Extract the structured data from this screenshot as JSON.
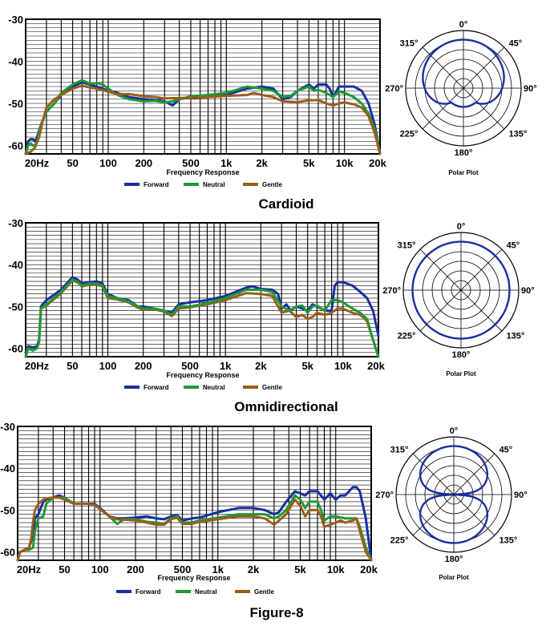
{
  "colors": {
    "forward": "#1a2fa0",
    "neutral": "#1e9a34",
    "gentle": "#9a5e1a",
    "grid": "#000000"
  },
  "chart_data": [
    {
      "type": "line",
      "title": "Cardioid",
      "xlabel": "Frequency Response",
      "ylabel": "",
      "xscale": "log",
      "xlim": [
        20,
        20000
      ],
      "ylim": [
        -62,
        -30
      ],
      "grid": true,
      "legend_position": "bottom",
      "y_ticks": [
        "-30",
        "-40",
        "-50",
        "-60"
      ],
      "y_tick_values": [
        -30,
        -40,
        -50,
        -60
      ],
      "x_ticks": [
        "20Hz",
        "50",
        "100",
        "200",
        "500",
        "1k",
        "2k",
        "5k",
        "10k",
        "20k"
      ],
      "x_tick_values": [
        20,
        50,
        100,
        200,
        500,
        1000,
        2000,
        5000,
        10000,
        20000
      ],
      "series": [
        {
          "name": "Forward",
          "x": [
            20,
            21,
            22,
            23,
            24,
            25,
            27,
            30,
            35,
            40,
            50,
            60,
            70,
            80,
            90,
            100,
            120,
            150,
            200,
            250,
            300,
            350,
            400,
            500,
            700,
            1000,
            1500,
            2000,
            2500,
            3000,
            3500,
            4000,
            5000,
            5500,
            6000,
            7000,
            7500,
            8000,
            9000,
            10000,
            12000,
            14000,
            16000,
            18000,
            20000
          ],
          "y": [
            -62,
            -59,
            -58.5,
            -58.5,
            -59,
            -58,
            -55,
            -52,
            -50,
            -48,
            -46,
            -45,
            -45.5,
            -46,
            -46.5,
            -47,
            -47.5,
            -48.5,
            -49,
            -49.2,
            -49.5,
            -50.5,
            -49,
            -48.5,
            -48.5,
            -48,
            -46.5,
            -46,
            -46.5,
            -49,
            -48.5,
            -47,
            -45.5,
            -46.5,
            -45.5,
            -45.5,
            -46.5,
            -48.5,
            -46,
            -46,
            -46,
            -47,
            -50,
            -55,
            -62
          ]
        },
        {
          "name": "Neutral",
          "x": [
            20,
            21,
            22,
            23,
            24,
            25,
            27,
            30,
            35,
            40,
            50,
            60,
            70,
            80,
            90,
            100,
            120,
            150,
            200,
            250,
            300,
            350,
            400,
            500,
            700,
            1000,
            1500,
            2000,
            2500,
            3000,
            3500,
            4000,
            5000,
            5500,
            6000,
            7000,
            8000,
            9000,
            10000,
            12000,
            14000,
            16000,
            18000,
            20000
          ],
          "y": [
            -62,
            -60,
            -59.5,
            -60,
            -60,
            -59,
            -55,
            -52,
            -50,
            -47.5,
            -45.5,
            -44.5,
            -45.3,
            -45.2,
            -45.5,
            -46.5,
            -48,
            -49,
            -49.5,
            -49.4,
            -49.8,
            -49.5,
            -49,
            -48.3,
            -48,
            -47.5,
            -46,
            -46.5,
            -47,
            -48.5,
            -48.2,
            -47,
            -46,
            -47,
            -46.8,
            -47.5,
            -48.5,
            -47.2,
            -47.5,
            -48.5,
            -50,
            -52.5,
            -56,
            -62
          ]
        },
        {
          "name": "Gentle",
          "x": [
            20,
            22,
            24,
            26,
            28,
            30,
            35,
            40,
            50,
            60,
            70,
            80,
            100,
            120,
            150,
            200,
            250,
            300,
            400,
            500,
            700,
            1000,
            1500,
            1700,
            2000,
            2500,
            3000,
            4000,
            5000,
            6000,
            7000,
            8000,
            9000,
            10000,
            12000,
            14000,
            16000,
            18000,
            20000
          ],
          "y": [
            -62,
            -61.5,
            -60.5,
            -58,
            -54,
            -51,
            -49,
            -48,
            -46.5,
            -45.8,
            -46.2,
            -46.5,
            -47.2,
            -47.8,
            -47.8,
            -48.3,
            -48.5,
            -48.8,
            -48.7,
            -48.7,
            -48.5,
            -48.2,
            -48,
            -47.5,
            -48,
            -48.5,
            -49.5,
            -49.7,
            -49.3,
            -49.2,
            -50,
            -50.5,
            -50,
            -49.8,
            -50.2,
            -51,
            -53,
            -57,
            -62
          ]
        }
      ]
    },
    {
      "type": "line",
      "title": "Omnidirectional",
      "xlabel": "Frequency Response",
      "ylabel": "",
      "xscale": "log",
      "xlim": [
        20,
        20000
      ],
      "ylim": [
        -62,
        -30
      ],
      "grid": true,
      "legend_position": "bottom",
      "y_ticks": [
        "-30",
        "-40",
        "-50",
        "-60"
      ],
      "y_tick_values": [
        -30,
        -40,
        -50,
        -60
      ],
      "x_ticks": [
        "20Hz",
        "50",
        "100",
        "200",
        "500",
        "1k",
        "2k",
        "5k",
        "10k",
        "20k"
      ],
      "x_tick_values": [
        20,
        50,
        100,
        200,
        500,
        1000,
        2000,
        5000,
        10000,
        20000
      ],
      "series": [
        {
          "name": "Forward",
          "x": [
            20,
            21,
            23,
            25,
            26,
            27,
            30,
            40,
            50,
            55,
            60,
            70,
            80,
            90,
            100,
            120,
            150,
            180,
            200,
            250,
            300,
            350,
            400,
            500,
            700,
            1000,
            1500,
            1700,
            2000,
            2500,
            2800,
            3000,
            3300,
            3600,
            4000,
            4500,
            5000,
            5500,
            6000,
            7000,
            8000,
            8500,
            9000,
            10000,
            12000,
            14000,
            16000,
            18000,
            20000
          ],
          "y": [
            -61,
            -59.5,
            -59.8,
            -59.5,
            -58,
            -50,
            -48.5,
            -46,
            -43,
            -43.5,
            -44.5,
            -44.2,
            -44,
            -44.5,
            -47,
            -48,
            -48.5,
            -50,
            -50,
            -50.5,
            -51,
            -51.5,
            -49.5,
            -49,
            -48.5,
            -47.5,
            -45.5,
            -45.2,
            -45.8,
            -46,
            -47,
            -50.5,
            -49.5,
            -51,
            -50,
            -50.5,
            -51,
            -49.5,
            -50,
            -51,
            -51,
            -45,
            -44.2,
            -44.2,
            -45,
            -46.5,
            -48,
            -51,
            -57
          ]
        },
        {
          "name": "Neutral",
          "x": [
            20,
            21,
            23,
            25,
            26,
            27,
            30,
            40,
            50,
            55,
            60,
            70,
            80,
            90,
            100,
            120,
            150,
            180,
            200,
            250,
            300,
            350,
            400,
            500,
            700,
            1000,
            1500,
            2000,
            2500,
            3000,
            3500,
            4000,
            4500,
            5000,
            5500,
            6000,
            7000,
            8000,
            9000,
            10000,
            12000,
            14000,
            16000,
            18000,
            20000
          ],
          "y": [
            -62,
            -60,
            -60.5,
            -60,
            -58.5,
            -50.5,
            -49.5,
            -46.5,
            -43.5,
            -44,
            -45,
            -44.5,
            -44.5,
            -45,
            -47.5,
            -48,
            -48.8,
            -50,
            -50.5,
            -50.5,
            -51,
            -52,
            -50,
            -50,
            -49.2,
            -48,
            -46,
            -46,
            -46.5,
            -50,
            -51,
            -50,
            -49.8,
            -51.5,
            -50,
            -49.8,
            -51,
            -48.5,
            -48.5,
            -49,
            -50.5,
            -51.5,
            -53,
            -58,
            -62
          ]
        },
        {
          "name": "Gentle",
          "x": [
            20,
            21,
            23,
            25,
            26,
            27,
            30,
            40,
            50,
            55,
            60,
            70,
            80,
            90,
            100,
            120,
            150,
            180,
            200,
            250,
            300,
            350,
            400,
            500,
            700,
            1000,
            1500,
            2000,
            2500,
            3000,
            3500,
            4000,
            4500,
            5000,
            5500,
            6000,
            7000,
            8000,
            9000,
            10000,
            12000,
            14000,
            16000,
            18000,
            20000
          ],
          "y": [
            -62,
            -60,
            -60.5,
            -60,
            -58.5,
            -50.5,
            -49.8,
            -46.8,
            -43.8,
            -44.2,
            -45.2,
            -44.8,
            -44.8,
            -45.2,
            -48,
            -48.3,
            -49,
            -50.3,
            -50.8,
            -50.7,
            -51.2,
            -52.3,
            -50.5,
            -50.2,
            -49.5,
            -48.5,
            -46.8,
            -47,
            -47.5,
            -51.5,
            -51,
            -52.5,
            -52,
            -53,
            -52.5,
            -51.5,
            -52,
            -51.5,
            -50.5,
            -50.5,
            -51.5,
            -52,
            -53.5,
            -58,
            -62
          ]
        }
      ]
    },
    {
      "type": "line",
      "title": "Figure-8",
      "xlabel": "Frequency Response",
      "ylabel": "",
      "xscale": "log",
      "xlim": [
        20,
        20000
      ],
      "ylim": [
        -62,
        -30
      ],
      "grid": true,
      "legend_position": "bottom",
      "y_ticks": [
        "-30",
        "-40",
        "-50",
        "-60"
      ],
      "y_tick_values": [
        -30,
        -40,
        -50,
        -60
      ],
      "x_ticks": [
        "20Hz",
        "50",
        "100",
        "200",
        "500",
        "1k",
        "2k",
        "5k",
        "10k",
        "20k"
      ],
      "x_tick_values": [
        20,
        50,
        100,
        200,
        500,
        1000,
        2000,
        5000,
        10000,
        20000
      ],
      "series": [
        {
          "name": "Forward",
          "x": [
            20,
            21,
            23,
            25,
            27,
            28,
            30,
            33,
            35,
            40,
            45,
            50,
            60,
            70,
            80,
            90,
            100,
            120,
            140,
            160,
            200,
            250,
            300,
            350,
            400,
            450,
            500,
            600,
            700,
            1000,
            1500,
            2000,
            2500,
            3000,
            3300,
            3800,
            4500,
            5000,
            5500,
            6000,
            7000,
            8000,
            9000,
            10000,
            11000,
            12000,
            13000,
            14000,
            15000,
            16000,
            18000,
            20000
          ],
          "y": [
            -62,
            -60,
            -59.5,
            -59,
            -56,
            -52,
            -51,
            -48,
            -47.5,
            -47,
            -46.5,
            -47,
            -48.5,
            -48.5,
            -48.5,
            -48.5,
            -49.5,
            -51.5,
            -52,
            -52,
            -51.8,
            -51.5,
            -52,
            -52.2,
            -51.5,
            -51.2,
            -52.5,
            -52,
            -51.8,
            -50.5,
            -49.5,
            -49.5,
            -50,
            -51,
            -50.5,
            -48,
            -45.5,
            -46,
            -46.5,
            -45.5,
            -45.5,
            -47.5,
            -46,
            -47.5,
            -46.5,
            -46.5,
            -45.5,
            -44.5,
            -44.5,
            -45.5,
            -52,
            -62
          ]
        },
        {
          "name": "Neutral",
          "x": [
            20,
            21,
            23,
            25,
            27,
            28,
            30,
            33,
            35,
            40,
            45,
            50,
            60,
            70,
            80,
            90,
            100,
            120,
            140,
            160,
            200,
            250,
            300,
            350,
            400,
            450,
            500,
            600,
            700,
            1000,
            1500,
            2000,
            2500,
            3000,
            3300,
            3800,
            4500,
            5000,
            5500,
            6000,
            7000,
            7500,
            8000,
            9000,
            10000,
            12000,
            14000,
            15000,
            16000,
            18000,
            20000
          ],
          "y": [
            -62,
            -60,
            -59.5,
            -59.5,
            -59,
            -55,
            -52,
            -51.5,
            -48.5,
            -47,
            -47,
            -47,
            -48.5,
            -48.5,
            -48.5,
            -48.7,
            -49.7,
            -51.5,
            -53.3,
            -52.2,
            -52.2,
            -52.8,
            -53,
            -53.3,
            -52,
            -51.5,
            -53,
            -53,
            -52.5,
            -51.8,
            -51,
            -51,
            -51,
            -52,
            -51.5,
            -50,
            -46.5,
            -47.5,
            -49.5,
            -48,
            -48,
            -50,
            -52.5,
            -51.5,
            -51.5,
            -52,
            -52,
            -52,
            -54,
            -59,
            -62
          ]
        },
        {
          "name": "Gentle",
          "x": [
            20,
            21,
            23,
            25,
            26,
            27,
            28,
            30,
            33,
            35,
            40,
            45,
            50,
            60,
            70,
            80,
            90,
            100,
            120,
            140,
            160,
            200,
            250,
            300,
            350,
            400,
            450,
            500,
            600,
            700,
            1000,
            1500,
            2000,
            2500,
            3000,
            3300,
            3800,
            4500,
            5000,
            5500,
            6000,
            7000,
            7500,
            8000,
            9000,
            10000,
            11000,
            12000,
            14000,
            15000,
            16000,
            18000,
            20000
          ],
          "y": [
            -62,
            -60,
            -59.5,
            -59,
            -57,
            -53,
            -50,
            -48.5,
            -47.5,
            -47.2,
            -47,
            -47,
            -47.5,
            -48.5,
            -48.5,
            -48.5,
            -48.8,
            -49.8,
            -51.5,
            -52.2,
            -52.3,
            -52.5,
            -53,
            -53.5,
            -53.5,
            -52.2,
            -51.8,
            -53.3,
            -53.3,
            -52.8,
            -52.2,
            -51.5,
            -51.5,
            -52,
            -53.5,
            -52.5,
            -51,
            -47.5,
            -49,
            -51.5,
            -50,
            -50,
            -51.5,
            -54,
            -53.5,
            -53,
            -52.5,
            -53,
            -52.5,
            -52,
            -55,
            -60,
            -62
          ]
        }
      ]
    }
  ],
  "polar_plots": [
    {
      "label": "Polar Plot",
      "pattern": "cardioid",
      "angle_labels": [
        "0°",
        "45°",
        "90°",
        "135°",
        "180°",
        "225°",
        "270°",
        "315°"
      ]
    },
    {
      "label": "Polar Plot",
      "pattern": "omnidirectional",
      "angle_labels": [
        "0°",
        "45°",
        "90°",
        "135°",
        "180°",
        "225°",
        "270°",
        "315°"
      ]
    },
    {
      "label": "Polar Plot",
      "pattern": "figure-8",
      "angle_labels": [
        "0°",
        "45°",
        "90°",
        "135°",
        "180°",
        "225°",
        "270°",
        "315°"
      ]
    }
  ],
  "legend": [
    "Forward",
    "Neutral",
    "Gentle"
  ]
}
